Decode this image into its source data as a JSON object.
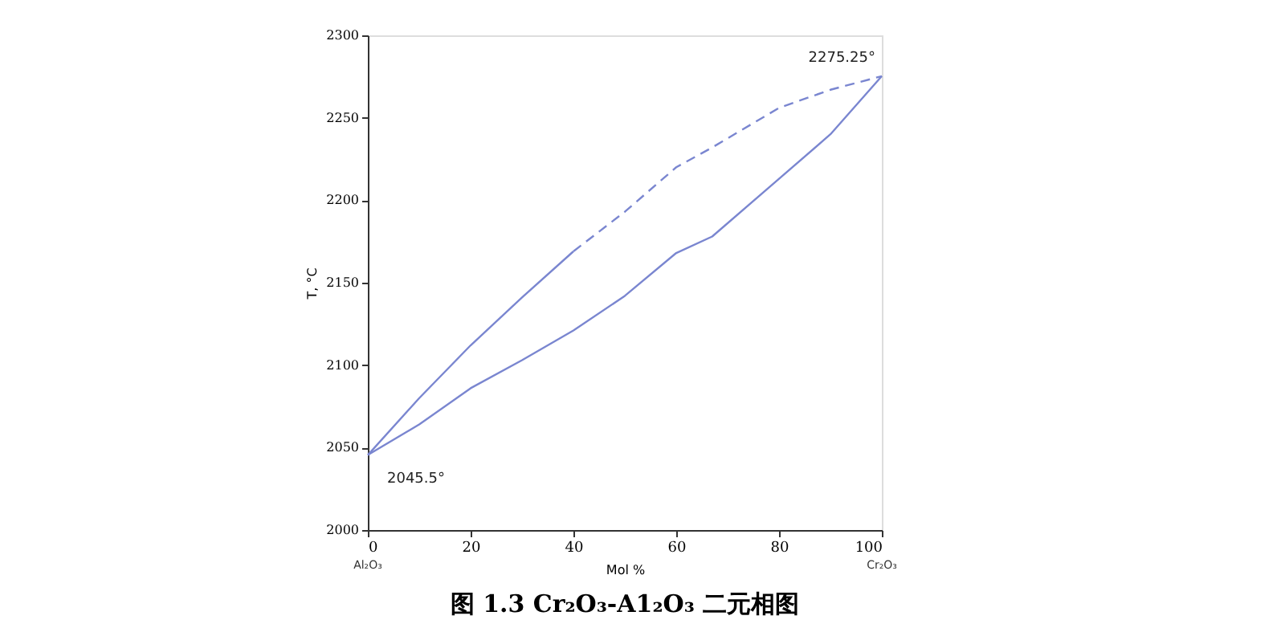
{
  "chart_data": {
    "type": "line",
    "title": "图 1.3 Cr₂O₃-A1₂O₃ 二元相图",
    "xlabel": "Mol %",
    "ylabel": "T, °C",
    "series": [
      {
        "color": "#7a86d0",
        "line_style": "solid",
        "x": [
          0,
          10,
          20,
          30,
          40
        ],
        "values": [
          2045.5,
          2080,
          2112,
          2141,
          2169
        ]
      },
      {
        "color": "#7a86d0",
        "line_style": "dashed",
        "x": [
          40,
          50,
          60,
          67,
          80,
          90,
          100
        ],
        "values": [
          2169,
          2193,
          2220,
          2232,
          2256,
          2267,
          2275.25
        ]
      },
      {
        "color": "#7a86d0",
        "line_style": "solid",
        "x": [
          0,
          10,
          20,
          30,
          40,
          50,
          60,
          67,
          80,
          90,
          100
        ],
        "values": [
          2045.5,
          2064,
          2086,
          2103,
          2121,
          2142,
          2168,
          2178,
          2213,
          2240,
          2275.25
        ]
      }
    ],
    "annotations": [
      {
        "text": "2045.5°",
        "x": 0,
        "y": 2045.5
      },
      {
        "text": "2275.25°",
        "x": 100,
        "y": 2275.25
      },
      "Al₂O₃",
      "Cr₂O₃"
    ],
    "xlim": [
      0,
      100
    ],
    "xticks": [
      0,
      20,
      40,
      60,
      80,
      100
    ],
    "ylim": [
      2000,
      2300
    ],
    "yticks": [
      2000,
      2050,
      2100,
      2150,
      2200,
      2250,
      2300
    ],
    "grid": false,
    "marker": "none"
  }
}
